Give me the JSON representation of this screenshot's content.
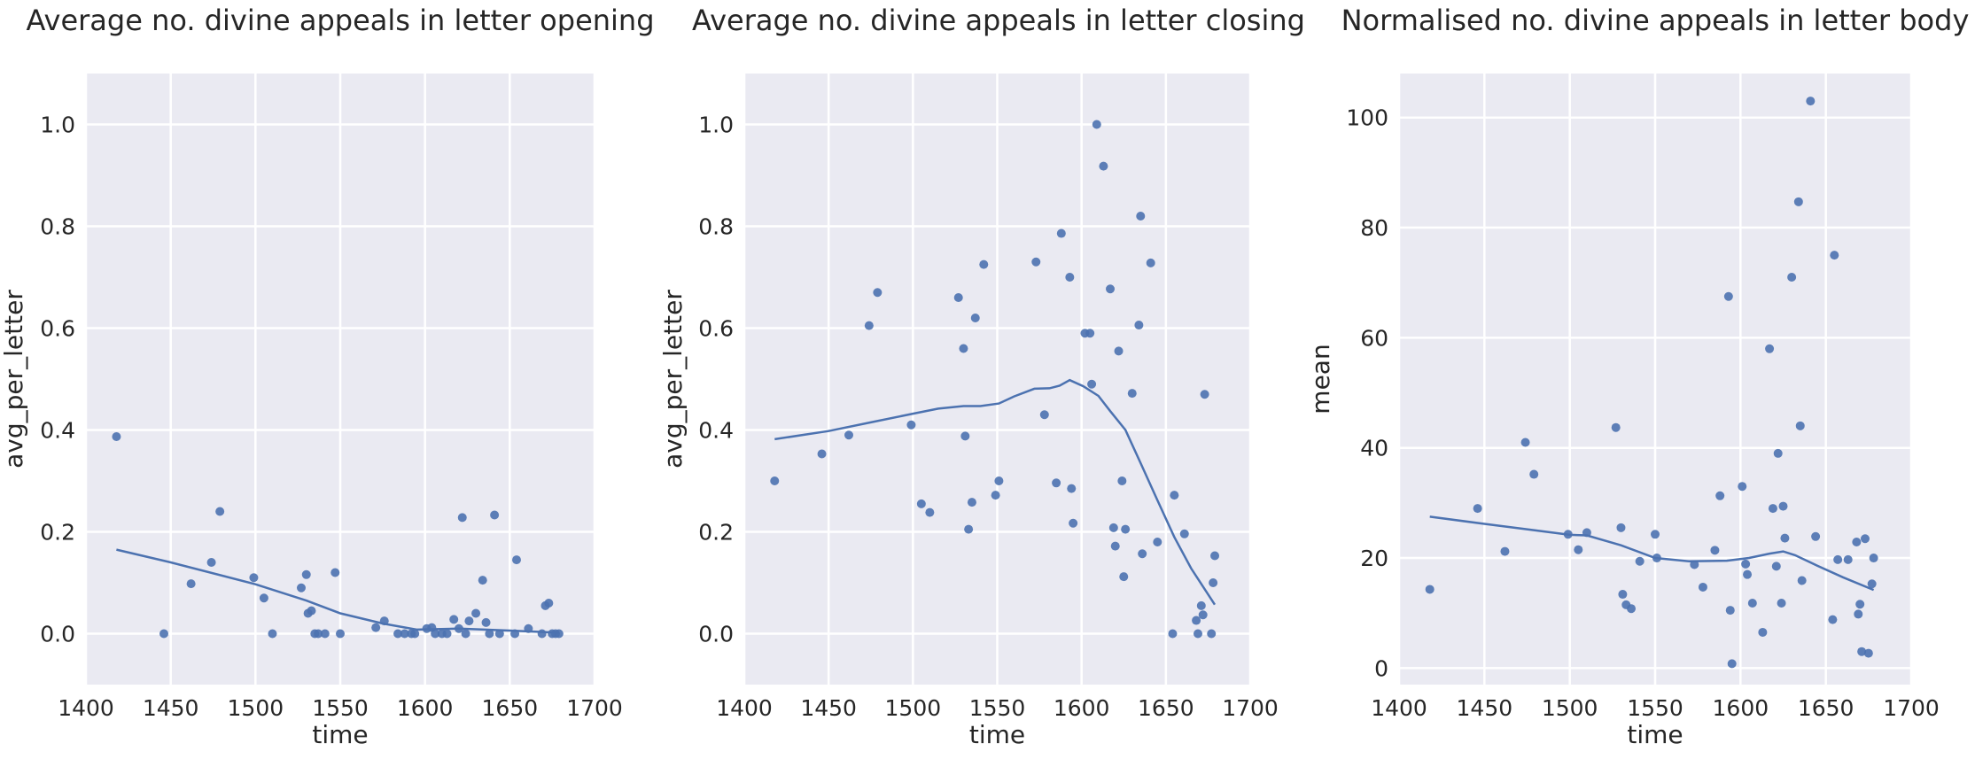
{
  "style": {
    "plot_bg": "#eaeaf2",
    "grid": "#ffffff",
    "series": "#4c72b0",
    "text": "#262626"
  },
  "chart_data": [
    {
      "type": "scatter",
      "title": "Average no. divine appeals in letter opening",
      "xlabel": "time",
      "ylabel": "avg_per_letter",
      "xlim": [
        1400,
        1700
      ],
      "ylim": [
        -0.1,
        1.1
      ],
      "xticks": [
        1400,
        1450,
        1500,
        1550,
        1600,
        1650,
        1700
      ],
      "yticks": [
        0.0,
        0.2,
        0.4,
        0.6,
        0.8,
        1.0
      ],
      "ytick_labels": [
        "0.0",
        "0.2",
        "0.4",
        "0.6",
        "0.8",
        "1.0"
      ],
      "grid": true,
      "points": [
        [
          1418,
          0.387
        ],
        [
          1446,
          0.0
        ],
        [
          1462,
          0.098
        ],
        [
          1474,
          0.14
        ],
        [
          1479,
          0.24
        ],
        [
          1499,
          0.11
        ],
        [
          1505,
          0.07
        ],
        [
          1510,
          0.0
        ],
        [
          1527,
          0.09
        ],
        [
          1530,
          0.116
        ],
        [
          1531,
          0.04
        ],
        [
          1533,
          0.045
        ],
        [
          1535,
          0.0
        ],
        [
          1537,
          0.0
        ],
        [
          1541,
          0.0
        ],
        [
          1547,
          0.12
        ],
        [
          1550,
          0.0
        ],
        [
          1571,
          0.012
        ],
        [
          1576,
          0.025
        ],
        [
          1584,
          0.0
        ],
        [
          1588,
          0.0
        ],
        [
          1592,
          0.0
        ],
        [
          1594,
          0.0
        ],
        [
          1601,
          0.01
        ],
        [
          1604,
          0.012
        ],
        [
          1606,
          0.0
        ],
        [
          1610,
          0.0
        ],
        [
          1613,
          0.0
        ],
        [
          1617,
          0.028
        ],
        [
          1620,
          0.01
        ],
        [
          1622,
          0.228
        ],
        [
          1624,
          0.0
        ],
        [
          1626,
          0.025
        ],
        [
          1630,
          0.04
        ],
        [
          1634,
          0.105
        ],
        [
          1636,
          0.022
        ],
        [
          1638,
          0.0
        ],
        [
          1641,
          0.233
        ],
        [
          1644,
          0.0
        ],
        [
          1653,
          0.0
        ],
        [
          1654,
          0.145
        ],
        [
          1661,
          0.01
        ],
        [
          1669,
          0.0
        ],
        [
          1671,
          0.055
        ],
        [
          1673,
          0.06
        ],
        [
          1675,
          0.0
        ],
        [
          1677,
          0.0
        ],
        [
          1679,
          0.0
        ]
      ],
      "trend": [
        [
          1418,
          0.165
        ],
        [
          1450,
          0.14
        ],
        [
          1500,
          0.097
        ],
        [
          1530,
          0.065
        ],
        [
          1550,
          0.04
        ],
        [
          1575,
          0.02
        ],
        [
          1595,
          0.008
        ],
        [
          1620,
          0.01
        ],
        [
          1650,
          0.006
        ],
        [
          1679,
          0.002
        ]
      ]
    },
    {
      "type": "scatter",
      "title": "Average no. divine appeals in letter closing",
      "xlabel": "time",
      "ylabel": "avg_per_letter",
      "xlim": [
        1400,
        1700
      ],
      "ylim": [
        -0.1,
        1.1
      ],
      "xticks": [
        1400,
        1450,
        1500,
        1550,
        1600,
        1650,
        1700
      ],
      "yticks": [
        0.0,
        0.2,
        0.4,
        0.6,
        0.8,
        1.0
      ],
      "ytick_labels": [
        "0.0",
        "0.2",
        "0.4",
        "0.6",
        "0.8",
        "1.0"
      ],
      "grid": true,
      "points": [
        [
          1418,
          0.3
        ],
        [
          1446,
          0.353
        ],
        [
          1462,
          0.39
        ],
        [
          1474,
          0.605
        ],
        [
          1479,
          0.67
        ],
        [
          1499,
          0.41
        ],
        [
          1505,
          0.255
        ],
        [
          1510,
          0.238
        ],
        [
          1527,
          0.66
        ],
        [
          1530,
          0.56
        ],
        [
          1531,
          0.388
        ],
        [
          1533,
          0.205
        ],
        [
          1535,
          0.258
        ],
        [
          1537,
          0.62
        ],
        [
          1542,
          0.725
        ],
        [
          1549,
          0.272
        ],
        [
          1551,
          0.3
        ],
        [
          1573,
          0.73
        ],
        [
          1578,
          0.43
        ],
        [
          1585,
          0.296
        ],
        [
          1588,
          0.786
        ],
        [
          1593,
          0.7
        ],
        [
          1594,
          0.285
        ],
        [
          1595,
          0.217
        ],
        [
          1602,
          0.59
        ],
        [
          1605,
          0.59
        ],
        [
          1606,
          0.49
        ],
        [
          1609,
          1.0
        ],
        [
          1613,
          0.918
        ],
        [
          1617,
          0.677
        ],
        [
          1619,
          0.208
        ],
        [
          1620,
          0.172
        ],
        [
          1622,
          0.555
        ],
        [
          1624,
          0.3
        ],
        [
          1625,
          0.112
        ],
        [
          1626,
          0.205
        ],
        [
          1630,
          0.472
        ],
        [
          1634,
          0.606
        ],
        [
          1635,
          0.82
        ],
        [
          1636,
          0.157
        ],
        [
          1641,
          0.728
        ],
        [
          1645,
          0.18
        ],
        [
          1654,
          0.0
        ],
        [
          1655,
          0.272
        ],
        [
          1661,
          0.196
        ],
        [
          1668,
          0.026
        ],
        [
          1669,
          0.0
        ],
        [
          1671,
          0.055
        ],
        [
          1672,
          0.037
        ],
        [
          1673,
          0.47
        ],
        [
          1677,
          0.0
        ],
        [
          1678,
          0.1
        ],
        [
          1679,
          0.153
        ]
      ],
      "trend": [
        [
          1418,
          0.382
        ],
        [
          1450,
          0.398
        ],
        [
          1475,
          0.415
        ],
        [
          1500,
          0.432
        ],
        [
          1515,
          0.442
        ],
        [
          1530,
          0.447
        ],
        [
          1540,
          0.447
        ],
        [
          1551,
          0.452
        ],
        [
          1560,
          0.466
        ],
        [
          1572,
          0.481
        ],
        [
          1581,
          0.482
        ],
        [
          1587,
          0.487
        ],
        [
          1593,
          0.498
        ],
        [
          1601,
          0.486
        ],
        [
          1610,
          0.467
        ],
        [
          1617,
          0.437
        ],
        [
          1626,
          0.4
        ],
        [
          1635,
          0.335
        ],
        [
          1645,
          0.262
        ],
        [
          1655,
          0.19
        ],
        [
          1665,
          0.128
        ],
        [
          1679,
          0.057
        ]
      ]
    },
    {
      "type": "scatter",
      "title": "Normalised no. divine appeals in letter body",
      "xlabel": "time",
      "ylabel": "mean",
      "xlim": [
        1400,
        1700
      ],
      "ylim": [
        -3.0,
        108.0
      ],
      "xticks": [
        1400,
        1450,
        1500,
        1550,
        1600,
        1650,
        1700
      ],
      "yticks": [
        0,
        20,
        40,
        60,
        80,
        100
      ],
      "ytick_labels": [
        "0",
        "20",
        "40",
        "60",
        "80",
        "100"
      ],
      "grid": true,
      "points": [
        [
          1418,
          14.3
        ],
        [
          1446,
          29.0
        ],
        [
          1462,
          21.2
        ],
        [
          1474,
          41.0
        ],
        [
          1479,
          35.2
        ],
        [
          1499,
          24.3
        ],
        [
          1505,
          21.5
        ],
        [
          1510,
          24.6
        ],
        [
          1527,
          43.7
        ],
        [
          1530,
          25.5
        ],
        [
          1531,
          13.4
        ],
        [
          1533,
          11.5
        ],
        [
          1536,
          10.8
        ],
        [
          1541,
          19.4
        ],
        [
          1550,
          24.3
        ],
        [
          1551,
          20.0
        ],
        [
          1573,
          18.8
        ],
        [
          1578,
          14.7
        ],
        [
          1585,
          21.4
        ],
        [
          1588,
          31.3
        ],
        [
          1593,
          67.5
        ],
        [
          1594,
          10.5
        ],
        [
          1595,
          0.8
        ],
        [
          1601,
          33.0
        ],
        [
          1603,
          18.9
        ],
        [
          1604,
          17.0
        ],
        [
          1607,
          11.8
        ],
        [
          1613,
          6.5
        ],
        [
          1617,
          58.0
        ],
        [
          1619,
          29.0
        ],
        [
          1621,
          18.5
        ],
        [
          1622,
          39.0
        ],
        [
          1624,
          11.8
        ],
        [
          1625,
          29.4
        ],
        [
          1626,
          23.6
        ],
        [
          1630,
          71.0
        ],
        [
          1634,
          84.7
        ],
        [
          1635,
          44.0
        ],
        [
          1636,
          15.9
        ],
        [
          1641,
          103.0
        ],
        [
          1644,
          23.9
        ],
        [
          1654,
          8.8
        ],
        [
          1655,
          75.0
        ],
        [
          1657,
          19.7
        ],
        [
          1663,
          19.7
        ],
        [
          1668,
          22.9
        ],
        [
          1669,
          9.8
        ],
        [
          1670,
          11.6
        ],
        [
          1671,
          3.0
        ],
        [
          1673,
          23.5
        ],
        [
          1675,
          2.7
        ],
        [
          1677,
          15.3
        ],
        [
          1678,
          20.0
        ]
      ],
      "trend": [
        [
          1418,
          27.5
        ],
        [
          1450,
          26.2
        ],
        [
          1480,
          25.0
        ],
        [
          1500,
          24.2
        ],
        [
          1510,
          24.1
        ],
        [
          1530,
          22.3
        ],
        [
          1550,
          20.0
        ],
        [
          1570,
          19.4
        ],
        [
          1592,
          19.5
        ],
        [
          1605,
          20.0
        ],
        [
          1617,
          20.8
        ],
        [
          1625,
          21.2
        ],
        [
          1632,
          20.5
        ],
        [
          1645,
          18.6
        ],
        [
          1660,
          16.5
        ],
        [
          1678,
          14.2
        ]
      ]
    }
  ]
}
